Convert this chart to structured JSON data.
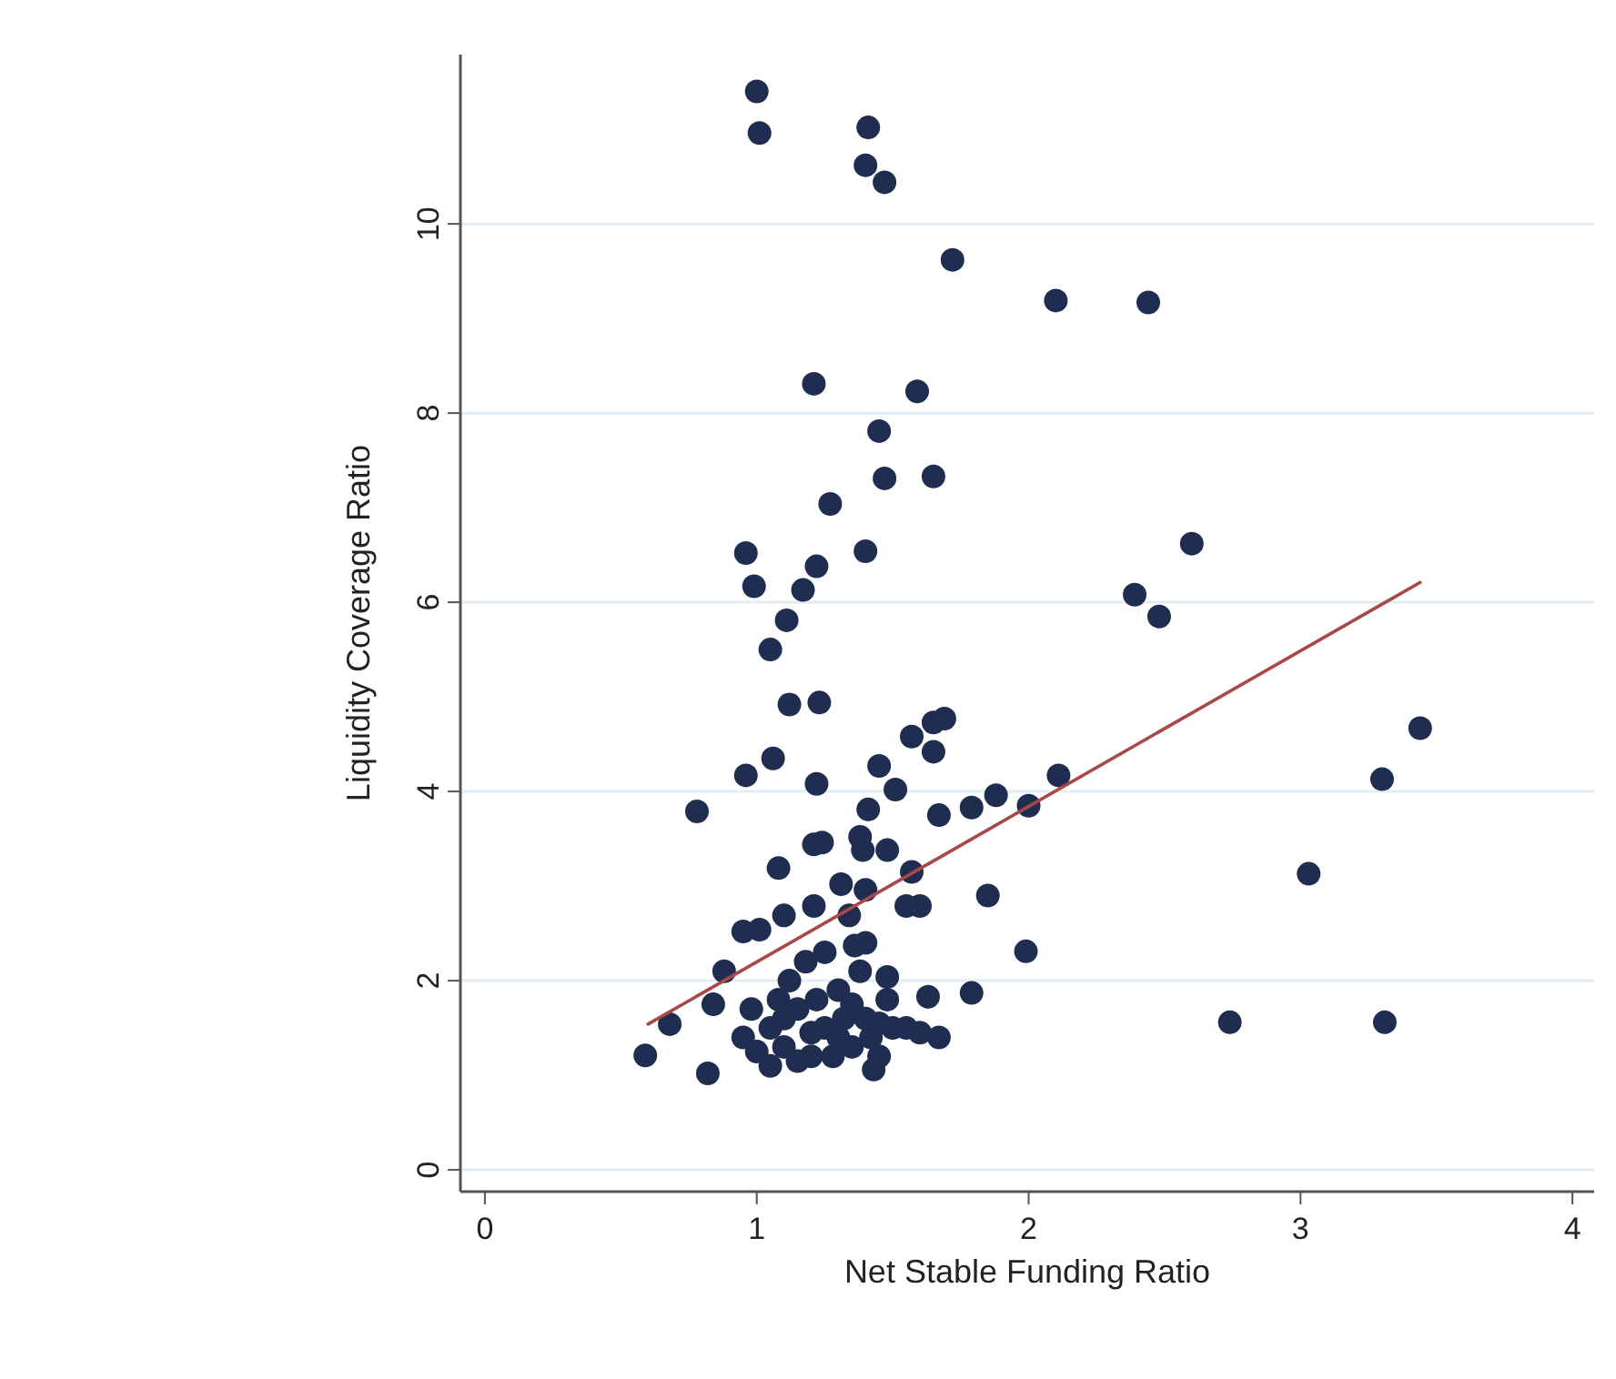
{
  "chart_data": {
    "type": "scatter",
    "xlabel": "Net Stable Funding Ratio",
    "ylabel": "Liquidity Coverage Ratio",
    "xlim": [
      -0.09,
      4.08
    ],
    "ylim": [
      -0.23,
      11.79
    ],
    "xticks": [
      0,
      1,
      2,
      3,
      4
    ],
    "yticks": [
      0,
      2,
      4,
      6,
      8,
      10
    ],
    "grid": "y",
    "series": [
      {
        "marker": "circle",
        "color": "#1f2d50",
        "x": [
          1.0,
          1.01,
          1.41,
          1.4,
          1.47,
          1.72,
          2.1,
          2.44,
          1.21,
          1.59,
          1.45,
          1.47,
          1.65,
          1.27,
          0.96,
          1.4,
          0.99,
          1.22,
          1.17,
          1.11,
          1.05,
          2.6,
          2.39,
          2.48,
          3.44,
          3.3,
          3.03,
          2.74,
          3.31,
          2.11,
          2.0,
          1.99,
          1.12,
          1.23,
          1.57,
          1.65,
          1.69,
          1.65,
          1.06,
          0.96,
          1.45,
          1.22,
          1.51,
          1.88,
          1.79,
          1.67,
          0.78,
          1.41,
          1.24,
          1.21,
          1.38,
          1.39,
          1.48,
          1.57,
          1.08,
          1.31,
          1.4,
          1.85,
          1.21,
          1.55,
          1.6,
          1.1,
          1.34,
          0.95,
          1.01,
          1.36,
          0.88,
          1.48,
          1.63,
          1.79,
          0.84,
          0.68,
          0.59,
          0.82,
          1.67,
          1.43,
          1.05,
          1.1,
          1.15,
          1.2,
          1.25,
          1.3,
          1.35,
          1.4,
          1.45,
          1.5,
          1.0,
          0.95,
          1.12,
          1.18,
          1.22,
          1.28,
          1.32,
          1.38,
          1.42,
          1.08,
          1.15,
          1.25,
          1.3,
          1.48,
          1.55,
          1.6,
          1.2,
          1.1,
          0.98,
          1.35,
          1.05,
          1.4,
          1.45
        ],
        "values": [
          11.4,
          10.96,
          11.02,
          10.62,
          10.44,
          9.62,
          9.19,
          9.17,
          8.31,
          8.23,
          7.81,
          7.31,
          7.33,
          7.04,
          6.52,
          6.54,
          6.17,
          6.38,
          6.13,
          5.81,
          5.5,
          6.62,
          6.08,
          5.85,
          4.67,
          4.13,
          3.13,
          1.56,
          1.56,
          4.17,
          3.85,
          2.31,
          4.92,
          4.94,
          4.58,
          4.73,
          4.77,
          4.42,
          4.35,
          4.17,
          4.27,
          4.08,
          4.02,
          3.96,
          3.83,
          3.75,
          3.79,
          3.81,
          3.46,
          3.44,
          3.52,
          3.38,
          3.38,
          3.15,
          3.19,
          3.02,
          2.96,
          2.9,
          2.79,
          2.79,
          2.79,
          2.69,
          2.69,
          2.52,
          2.54,
          2.37,
          2.1,
          2.04,
          1.83,
          1.87,
          1.75,
          1.54,
          1.21,
          1.02,
          1.4,
          1.06,
          1.5,
          1.3,
          1.7,
          1.2,
          1.5,
          1.9,
          1.3,
          1.6,
          1.2,
          1.5,
          1.25,
          1.4,
          2.0,
          2.2,
          1.8,
          1.2,
          1.6,
          2.1,
          1.4,
          1.8,
          1.15,
          2.3,
          1.4,
          1.8,
          1.5,
          1.45,
          1.45,
          1.6,
          1.7,
          1.75,
          1.1,
          2.4,
          1.55
        ]
      },
      {
        "type": "line",
        "color": "#a84848",
        "x": [
          0.6,
          3.44
        ],
        "values": [
          1.54,
          6.21
        ]
      }
    ]
  }
}
